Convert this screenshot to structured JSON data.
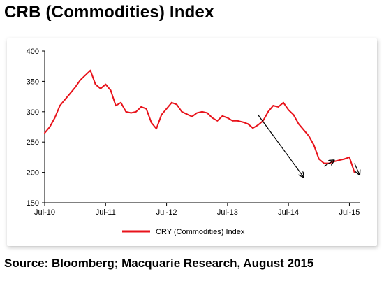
{
  "title": "CRB (Commodities) Index",
  "source": "Source: Bloomberg; Macquarie Research, August 2015",
  "colors": {
    "series": "#e8131b",
    "axis": "#000000",
    "annotation": "#000000"
  },
  "chart_data": {
    "type": "line",
    "title": "",
    "xlabel": "",
    "ylabel": "",
    "ylim": [
      150,
      400
    ],
    "yticks": [
      150,
      200,
      250,
      300,
      350,
      400
    ],
    "xlim": [
      "2010-07",
      "2015-09"
    ],
    "xticks": [
      "Jul-10",
      "Jul-11",
      "Jul-12",
      "Jul-13",
      "Jul-14",
      "Jul-15"
    ],
    "grid": false,
    "legend": "bottom-center",
    "series": [
      {
        "name": "CRY (Commodities) Index",
        "x": [
          "2010-07",
          "2010-08",
          "2010-09",
          "2010-10",
          "2010-11",
          "2010-12",
          "2011-01",
          "2011-02",
          "2011-03",
          "2011-04",
          "2011-05",
          "2011-06",
          "2011-07",
          "2011-08",
          "2011-09",
          "2011-10",
          "2011-11",
          "2011-12",
          "2012-01",
          "2012-02",
          "2012-03",
          "2012-04",
          "2012-05",
          "2012-06",
          "2012-07",
          "2012-08",
          "2012-09",
          "2012-10",
          "2012-11",
          "2012-12",
          "2013-01",
          "2013-02",
          "2013-03",
          "2013-04",
          "2013-05",
          "2013-06",
          "2013-07",
          "2013-08",
          "2013-09",
          "2013-10",
          "2013-11",
          "2013-12",
          "2014-01",
          "2014-02",
          "2014-03",
          "2014-04",
          "2014-05",
          "2014-06",
          "2014-07",
          "2014-08",
          "2014-09",
          "2014-10",
          "2014-11",
          "2014-12",
          "2015-01",
          "2015-02",
          "2015-03",
          "2015-04",
          "2015-05",
          "2015-06",
          "2015-07",
          "2015-08"
        ],
        "values": [
          265,
          275,
          290,
          310,
          320,
          330,
          340,
          352,
          360,
          368,
          345,
          338,
          345,
          335,
          310,
          315,
          300,
          298,
          300,
          308,
          305,
          282,
          272,
          295,
          305,
          315,
          312,
          300,
          296,
          292,
          298,
          300,
          298,
          290,
          285,
          293,
          290,
          285,
          285,
          283,
          280,
          273,
          278,
          285,
          300,
          310,
          308,
          315,
          303,
          295,
          280,
          270,
          260,
          245,
          222,
          215,
          215,
          218,
          220,
          222,
          225,
          200
        ]
      }
    ],
    "annotations": [
      {
        "type": "arrow",
        "from": [
          "2014-01",
          295
        ],
        "to": [
          "2014-10",
          192
        ]
      },
      {
        "type": "arrow",
        "from": [
          "2015-02",
          210
        ],
        "to": [
          "2015-04",
          220
        ]
      },
      {
        "type": "arrow",
        "from": [
          "2015-08",
          215
        ],
        "to": [
          "2015-09",
          196
        ]
      }
    ]
  }
}
